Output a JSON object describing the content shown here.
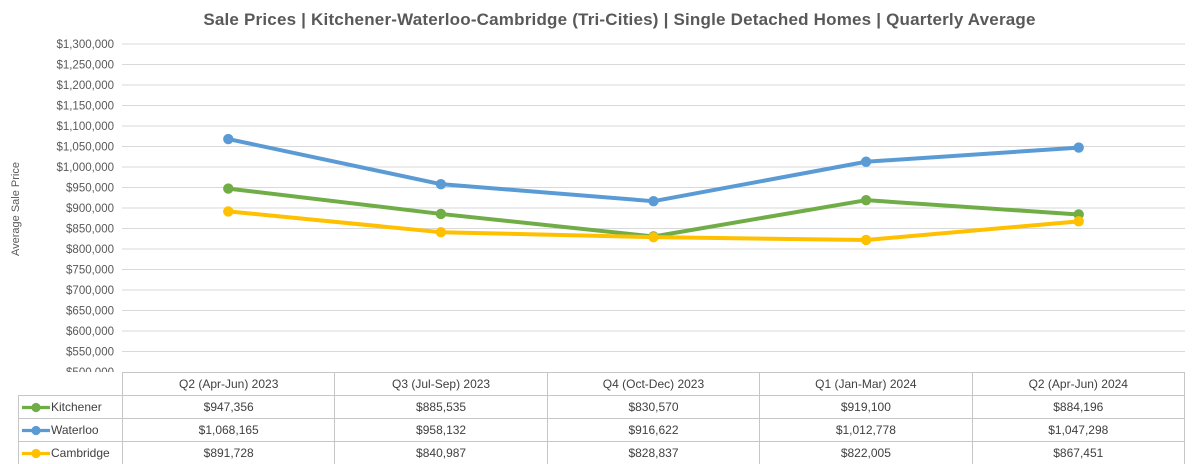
{
  "chart_data": {
    "type": "line",
    "title": "Sale Prices | Kitchener-Waterloo-Cambridge (Tri-Cities) | Single Detached Homes | Quarterly Average",
    "xlabel": "",
    "ylabel": "Average Sale Price",
    "ylim": [
      500000,
      1300000
    ],
    "ytick_step": 50000,
    "ytick_format": "$#,##0",
    "grid": true,
    "legend_position": "table-left",
    "categories": [
      "Q2 (Apr-Jun) 2023",
      "Q3 (Jul-Sep) 2023",
      "Q4 (Oct-Dec) 2023",
      "Q1 (Jan-Mar) 2024",
      "Q2 (Apr-Jun) 2024"
    ],
    "series": [
      {
        "name": "Kitchener",
        "color": "#70AD47",
        "values": [
          947356,
          885535,
          830570,
          919100,
          884196
        ]
      },
      {
        "name": "Waterloo",
        "color": "#5B9BD5",
        "values": [
          1068165,
          958132,
          916622,
          1012778,
          1047298
        ]
      },
      {
        "name": "Cambridge",
        "color": "#FFC000",
        "values": [
          891728,
          840987,
          828837,
          822005,
          867451
        ]
      }
    ],
    "colors": {
      "gridline": "#D9D9D9",
      "axis_text": "#595959",
      "title_text": "#595959",
      "table_border": "#C6C6C6",
      "table_text": "#404040"
    }
  },
  "table": {
    "columns": [
      "Q2 (Apr-Jun) 2023",
      "Q3 (Jul-Sep) 2023",
      "Q4 (Oct-Dec) 2023",
      "Q1 (Jan-Mar) 2024",
      "Q2 (Apr-Jun) 2024"
    ],
    "rows": [
      [
        "$947,356",
        "$885,535",
        "$830,570",
        "$919,100",
        "$884,196"
      ],
      [
        "$1,068,165",
        "$958,132",
        "$916,622",
        "$1,012,778",
        "$1,047,298"
      ],
      [
        "$891,728",
        "$840,987",
        "$828,837",
        "$822,005",
        "$867,451"
      ]
    ]
  }
}
